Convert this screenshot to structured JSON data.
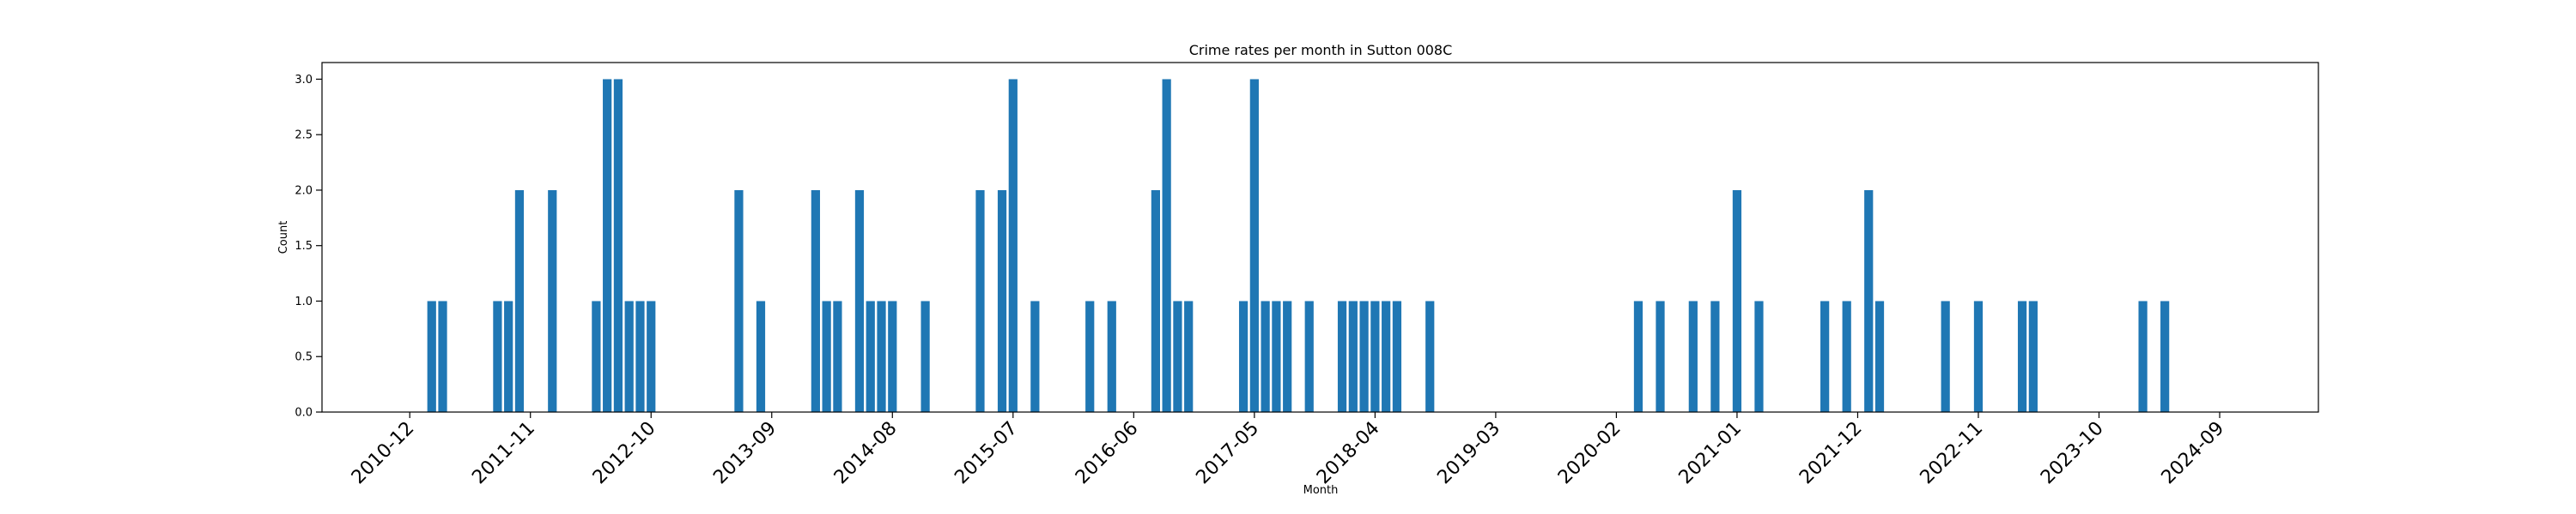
{
  "chart_data": {
    "type": "bar",
    "title": "Crime rates per month in Sutton 008C",
    "xlabel": "Month",
    "ylabel": "Count",
    "ylim": [
      0,
      3.15
    ],
    "yticks": [
      "0.0",
      "0.5",
      "1.0",
      "1.5",
      "2.0",
      "2.5",
      "3.0"
    ],
    "xticks": [
      "2010-12",
      "2011-11",
      "2012-10",
      "2013-09",
      "2014-08",
      "2015-07",
      "2016-06",
      "2017-05",
      "2018-04",
      "2019-03",
      "2020-02",
      "2021-01",
      "2021-12",
      "2022-11",
      "2023-10",
      "2024-09"
    ],
    "xlim": [
      "2010-04",
      "2025-06"
    ],
    "bar_color": "#1f77b4",
    "grid": false,
    "series": [
      {
        "x": [
          "2011-02",
          "2011-03",
          "2011-08",
          "2011-09",
          "2011-10",
          "2012-01",
          "2012-05",
          "2012-06",
          "2012-07",
          "2012-08",
          "2012-09",
          "2012-10",
          "2013-06",
          "2013-08",
          "2014-01",
          "2014-02",
          "2014-03",
          "2014-05",
          "2014-06",
          "2014-07",
          "2014-08",
          "2014-11",
          "2015-04",
          "2015-06",
          "2015-07",
          "2015-09",
          "2016-02",
          "2016-04",
          "2016-08",
          "2016-09",
          "2016-10",
          "2016-11",
          "2017-04",
          "2017-05",
          "2017-06",
          "2017-07",
          "2017-08",
          "2017-10",
          "2018-01",
          "2018-02",
          "2018-03",
          "2018-04",
          "2018-05",
          "2018-06",
          "2018-09",
          "2020-04",
          "2020-06",
          "2020-09",
          "2020-11",
          "2021-01",
          "2021-03",
          "2021-09",
          "2021-11",
          "2022-01",
          "2022-02",
          "2022-08",
          "2022-11",
          "2023-03",
          "2023-04",
          "2024-02",
          "2024-04"
        ],
        "values": [
          1,
          1,
          1,
          1,
          2,
          2,
          1,
          3,
          3,
          1,
          1,
          1,
          2,
          1,
          2,
          1,
          1,
          2,
          1,
          1,
          1,
          1,
          2,
          2,
          3,
          1,
          1,
          1,
          2,
          3,
          1,
          1,
          1,
          3,
          1,
          1,
          1,
          1,
          1,
          1,
          1,
          1,
          1,
          1,
          1,
          1,
          1,
          1,
          1,
          2,
          1,
          1,
          1,
          2,
          1,
          1,
          1,
          1,
          1,
          1,
          1
        ]
      }
    ]
  }
}
